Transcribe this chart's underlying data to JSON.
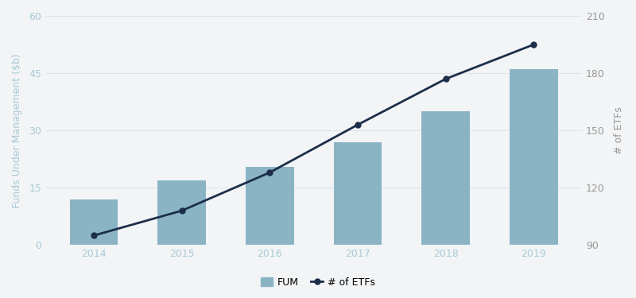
{
  "years": [
    2014,
    2015,
    2016,
    2017,
    2018,
    2019
  ],
  "fum": [
    12.0,
    17.0,
    20.5,
    27.0,
    35.0,
    46.0
  ],
  "etfs": [
    95,
    108,
    128,
    153,
    177,
    195
  ],
  "bar_color": "#8ab4c4",
  "line_color": "#1c2e4a",
  "marker_color": "#1c2e4a",
  "background_color": "#f2f4f6",
  "left_ylabel": "Funds Under Management ($b)",
  "right_ylabel": "# of ETFs",
  "left_ylim": [
    0,
    60
  ],
  "right_ylim": [
    90,
    210
  ],
  "left_yticks": [
    0,
    15,
    30,
    45,
    60
  ],
  "right_yticks": [
    90,
    120,
    150,
    180,
    210
  ],
  "legend_fum": "FUM",
  "legend_etfs": "# of ETFs",
  "tick_label_color": "#a8cad6",
  "axis_label_color": "#a8cad6",
  "right_tick_color": "#999999",
  "grid_color": "#e0e4e8"
}
